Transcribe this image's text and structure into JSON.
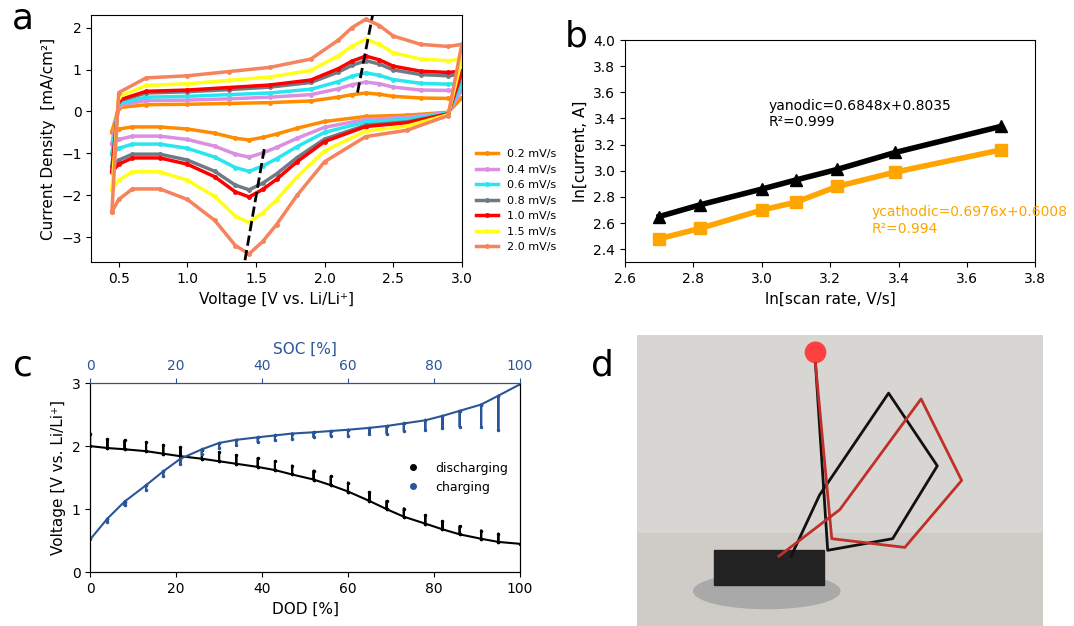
{
  "chart_data": [
    {
      "type": "line",
      "title": "a",
      "x_label": "Voltage [V vs. Li/Li⁺]",
      "y_label": "Current Density  [mA/cm²]",
      "xlim": [
        0.3,
        3.0
      ],
      "xticks": [
        0.5,
        1.0,
        1.5,
        2.0,
        2.5,
        3.0
      ],
      "ylim": [
        -3.6,
        2.3
      ],
      "yticks": [
        {
          "value": -3,
          "label": "−3"
        },
        {
          "value": -2,
          "label": "−2"
        },
        {
          "value": -1,
          "label": "−1"
        },
        0,
        1,
        2
      ],
      "legend": "lower left",
      "marker": "o",
      "x": [
        0.45,
        0.5,
        0.7,
        1.0,
        1.3,
        1.6,
        1.9,
        2.1,
        2.2,
        2.3,
        2.4,
        2.5,
        2.7,
        2.9,
        3.0,
        3.0,
        2.9,
        2.6,
        2.3,
        2.0,
        1.8,
        1.65,
        1.55,
        1.45,
        1.35,
        1.2,
        1.0,
        0.8,
        0.6,
        0.5,
        0.45
      ],
      "series": [
        {
          "name": "0.2 mV/s",
          "color": "#ff8c00",
          "values": [
            -0.48,
            0.09,
            0.16,
            0.17,
            0.19,
            0.21,
            0.25,
            0.34,
            0.4,
            0.44,
            0.41,
            0.36,
            0.32,
            0.31,
            0.32,
            0.32,
            -0.02,
            -0.09,
            -0.12,
            -0.24,
            -0.4,
            -0.54,
            -0.62,
            -0.68,
            -0.64,
            -0.52,
            -0.42,
            -0.37,
            -0.37,
            -0.42,
            -0.48
          ]
        },
        {
          "name": "0.4 mV/s",
          "color": "#da8fe0",
          "values": [
            -0.77,
            0.14,
            0.26,
            0.27,
            0.3,
            0.34,
            0.4,
            0.54,
            0.64,
            0.7,
            0.66,
            0.58,
            0.51,
            0.5,
            0.51,
            0.51,
            -0.03,
            -0.14,
            -0.19,
            -0.38,
            -0.64,
            -0.86,
            -0.99,
            -1.09,
            -1.02,
            -0.83,
            -0.67,
            -0.59,
            -0.59,
            -0.67,
            -0.77
          ]
        },
        {
          "name": "0.6 mV/s",
          "color": "#27e6f0",
          "values": [
            -1.01,
            0.19,
            0.34,
            0.36,
            0.4,
            0.44,
            0.53,
            0.71,
            0.84,
            0.92,
            0.86,
            0.76,
            0.67,
            0.65,
            0.67,
            0.67,
            -0.04,
            -0.19,
            -0.25,
            -0.5,
            -0.84,
            -1.13,
            -1.3,
            -1.43,
            -1.34,
            -1.09,
            -0.88,
            -0.78,
            -0.78,
            -0.88,
            -1.01
          ]
        },
        {
          "name": "0.8 mV/s",
          "color": "#6e7b87",
          "values": [
            -1.32,
            0.25,
            0.44,
            0.47,
            0.52,
            0.58,
            0.69,
            0.94,
            1.1,
            1.21,
            1.13,
            0.99,
            0.88,
            0.85,
            0.88,
            0.88,
            -0.06,
            -0.25,
            -0.33,
            -0.66,
            -1.1,
            -1.49,
            -1.71,
            -1.87,
            -1.76,
            -1.43,
            -1.16,
            -1.02,
            -1.02,
            -1.16,
            -1.32
          ]
        },
        {
          "name": "1.0 mV/s",
          "color": "#ff0000",
          "values": [
            -1.44,
            0.27,
            0.48,
            0.51,
            0.57,
            0.63,
            0.75,
            1.02,
            1.2,
            1.32,
            1.23,
            1.08,
            0.96,
            0.93,
            0.96,
            0.96,
            -0.06,
            -0.27,
            -0.36,
            -0.72,
            -1.2,
            -1.62,
            -1.86,
            -2.04,
            -1.92,
            -1.56,
            -1.26,
            -1.11,
            -1.11,
            -1.26,
            -1.44
          ]
        },
        {
          "name": "1.5 mV/s",
          "color": "#ffff1a",
          "values": [
            -1.87,
            0.35,
            0.62,
            0.66,
            0.74,
            0.82,
            0.98,
            1.33,
            1.56,
            1.72,
            1.6,
            1.4,
            1.25,
            1.21,
            1.25,
            1.25,
            -0.08,
            -0.35,
            -0.47,
            -0.94,
            -1.56,
            -2.11,
            -2.42,
            -2.65,
            -2.5,
            -2.03,
            -1.64,
            -1.44,
            -1.44,
            -1.64,
            -1.87
          ]
        },
        {
          "name": "2.0 mV/s",
          "color": "#f5845c",
          "values": [
            -2.4,
            0.45,
            0.8,
            0.85,
            0.95,
            1.05,
            1.25,
            1.7,
            2.0,
            2.2,
            2.05,
            1.8,
            1.6,
            1.55,
            1.6,
            1.6,
            -0.1,
            -0.45,
            -0.6,
            -1.2,
            -2.0,
            -2.7,
            -3.1,
            -3.4,
            -3.2,
            -2.6,
            -2.1,
            -1.85,
            -1.85,
            -2.1,
            -2.4
          ]
        }
      ],
      "peak_lines": [
        {
          "x": [
            1.42,
            1.56
          ],
          "values": [
            -3.55,
            -0.9
          ],
          "color": "#000000",
          "line_style": "dashed"
        },
        {
          "x": [
            2.24,
            2.35
          ],
          "values": [
            0.45,
            2.3
          ],
          "color": "#000000",
          "line_style": "dashed"
        }
      ]
    },
    {
      "type": "line",
      "title": "b",
      "x_label": "ln[scan rate, V/s]",
      "y_label": "ln[current, A]",
      "xlim": [
        2.6,
        3.8
      ],
      "xticks": [
        2.6,
        2.8,
        3.0,
        3.2,
        3.4,
        3.6,
        3.8
      ],
      "ylim": [
        2.3,
        4.0
      ],
      "yticks": [
        2.4,
        2.6,
        2.8,
        3.0,
        3.2,
        3.4,
        3.6,
        3.8,
        4.0
      ],
      "series": [
        {
          "color": "#000000",
          "marker": "^",
          "x": [
            2.7,
            2.82,
            3.0,
            3.1,
            3.22,
            3.39,
            3.7
          ],
          "values": [
            2.65,
            2.74,
            2.86,
            2.93,
            3.01,
            3.14,
            3.34
          ]
        },
        {
          "color": "#ffa500",
          "marker": "s",
          "x": [
            2.7,
            2.82,
            3.0,
            3.1,
            3.22,
            3.39,
            3.7
          ],
          "values": [
            2.48,
            2.56,
            2.7,
            2.76,
            2.88,
            2.99,
            3.16
          ]
        }
      ],
      "annotations": [
        {
          "text": "yanodic=0.6848x+0.8035\nR²=0.999",
          "color": "#000000"
        },
        {
          "text": "ycathodic=0.6976x+0.6008\nR²=0.994",
          "color": "#ffa500"
        }
      ]
    },
    {
      "type": "line",
      "title": "c",
      "x_label": "DOD [%]",
      "x2_label": "SOC [%]",
      "y_label": "Voltage [V vs. Li/Li⁺]",
      "xlim": [
        0,
        100
      ],
      "xticks": [
        0,
        20,
        40,
        60,
        80,
        100
      ],
      "x2lim": [
        0,
        100
      ],
      "x2ticks": [
        0,
        20,
        40,
        60,
        80,
        100
      ],
      "ylim": [
        0,
        3
      ],
      "yticks": [
        0,
        1,
        2,
        3
      ],
      "legend": "center right",
      "series": [
        {
          "name": "discharging",
          "color": "#000000",
          "marker": "o",
          "x": [
            0,
            0,
            4,
            4,
            4,
            8,
            8,
            8,
            13,
            13,
            13,
            17,
            17,
            17,
            21,
            21,
            21,
            26,
            26,
            26,
            30,
            30,
            30,
            34,
            34,
            34,
            39,
            39,
            39,
            43,
            43,
            43,
            47,
            47,
            47,
            52,
            52,
            52,
            56,
            56,
            56,
            60,
            60,
            60,
            65,
            65,
            65,
            69,
            69,
            69,
            73,
            73,
            73,
            78,
            78,
            78,
            82,
            82,
            82,
            86,
            86,
            86,
            91,
            91,
            91,
            95,
            95,
            95,
            100
          ],
          "values": [
            2.2,
            2.0,
            1.97,
            2.11,
            1.97,
            1.95,
            2.09,
            1.95,
            1.92,
            2.06,
            1.92,
            1.88,
            2.02,
            1.88,
            1.84,
            1.98,
            1.84,
            1.8,
            1.94,
            1.8,
            1.76,
            1.9,
            1.76,
            1.72,
            1.86,
            1.72,
            1.67,
            1.81,
            1.67,
            1.62,
            1.76,
            1.62,
            1.55,
            1.69,
            1.55,
            1.47,
            1.61,
            1.47,
            1.38,
            1.52,
            1.38,
            1.28,
            1.42,
            1.28,
            1.13,
            1.27,
            1.13,
            1.0,
            1.13,
            1.0,
            0.88,
            1.01,
            0.88,
            0.77,
            0.9,
            0.77,
            0.68,
            0.81,
            0.68,
            0.6,
            0.73,
            0.6,
            0.53,
            0.66,
            0.53,
            0.48,
            0.61,
            0.48,
            0.45
          ]
        },
        {
          "name": "charging",
          "color": "#2a5699",
          "marker": "o",
          "axis": "x2",
          "x": [
            0,
            4,
            4,
            4,
            8,
            8,
            8,
            13,
            13,
            13,
            17,
            17,
            17,
            21,
            21,
            21,
            26,
            26,
            26,
            30,
            30,
            30,
            34,
            34,
            34,
            39,
            39,
            39,
            43,
            43,
            43,
            47,
            47,
            47,
            52,
            52,
            52,
            56,
            56,
            56,
            60,
            60,
            60,
            65,
            65,
            65,
            69,
            69,
            69,
            73,
            73,
            73,
            78,
            78,
            78,
            82,
            82,
            82,
            86,
            86,
            86,
            91,
            91,
            91,
            95,
            95,
            95,
            100
          ],
          "values": [
            0.52,
            0.85,
            0.8,
            0.85,
            1.12,
            1.06,
            1.12,
            1.38,
            1.31,
            1.38,
            1.6,
            1.52,
            1.6,
            1.8,
            1.72,
            1.8,
            1.95,
            1.87,
            1.95,
            2.05,
            1.97,
            2.05,
            2.1,
            2.02,
            2.1,
            2.14,
            2.06,
            2.14,
            2.17,
            2.09,
            2.17,
            2.2,
            2.12,
            2.2,
            2.22,
            2.14,
            2.22,
            2.24,
            2.16,
            2.24,
            2.26,
            2.16,
            2.26,
            2.29,
            2.19,
            2.29,
            2.32,
            2.2,
            2.32,
            2.36,
            2.24,
            2.36,
            2.41,
            2.26,
            2.41,
            2.48,
            2.28,
            2.48,
            2.56,
            2.31,
            2.56,
            2.66,
            2.31,
            2.66,
            2.8,
            2.25,
            2.8,
            2.98
          ]
        }
      ]
    }
  ],
  "photo": {
    "title": "d"
  }
}
